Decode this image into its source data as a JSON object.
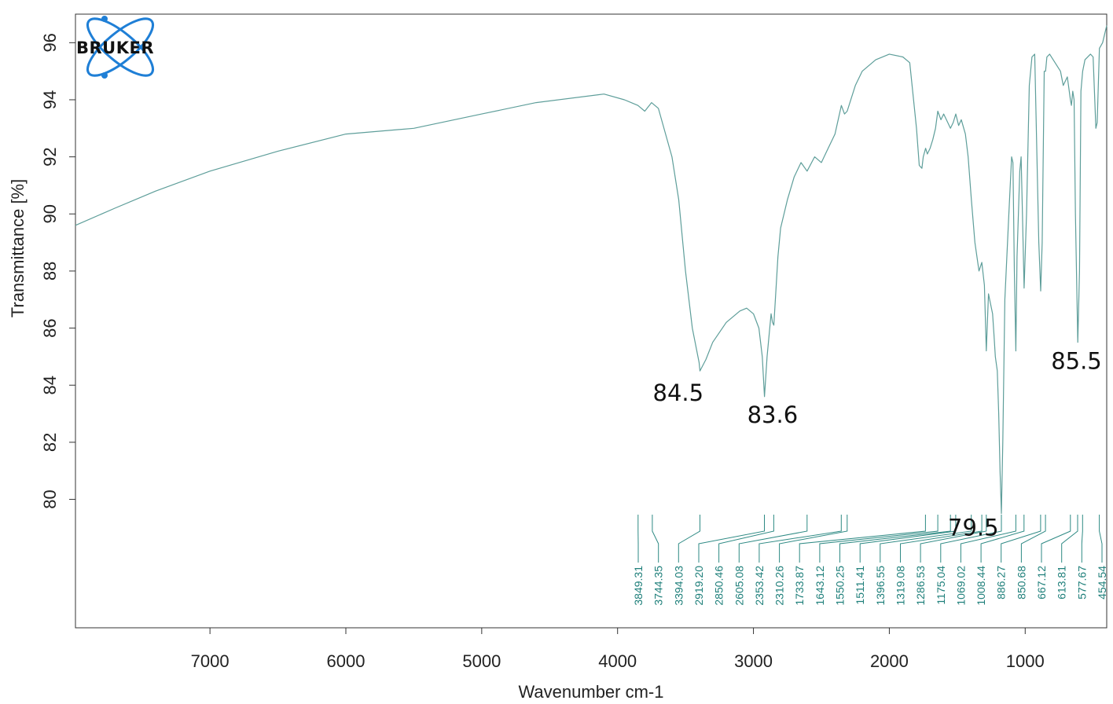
{
  "logo": {
    "text": "BRUKER",
    "accent_color": "#1f7fd6"
  },
  "colors": {
    "spectrum": "#5e9e9a",
    "peak_lines": "#2e8a84",
    "peak_text": "#1e7f7a",
    "axes": "#333333"
  },
  "chart_data": {
    "type": "line",
    "xlabel": "Wavenumber cm-1",
    "ylabel": "Transmittance [%]",
    "x_reversed": true,
    "xlim": [
      7990,
      400
    ],
    "ylim": [
      75.5,
      97
    ],
    "x_ticks": [
      7000,
      6000,
      5000,
      4000,
      3000,
      2000,
      1000
    ],
    "y_ticks": [
      80,
      82,
      84,
      86,
      88,
      90,
      92,
      94,
      96
    ],
    "grid": false,
    "series": [
      {
        "x": [
          7990,
          7700,
          7400,
          7000,
          6500,
          6000,
          5500,
          5000,
          4600,
          4100,
          3950,
          3850,
          3800,
          3750,
          3700,
          3600,
          3550,
          3500,
          3450,
          3400,
          3394,
          3350,
          3300,
          3200,
          3100,
          3050,
          3000,
          2960,
          2935,
          2919,
          2900,
          2870,
          2860,
          2850,
          2820,
          2800,
          2750,
          2700,
          2650,
          2605,
          2550,
          2500,
          2450,
          2400,
          2353,
          2330,
          2310,
          2250,
          2200,
          2100,
          2000,
          1900,
          1850,
          1800,
          1780,
          1760,
          1750,
          1733,
          1720,
          1700,
          1680,
          1660,
          1643,
          1620,
          1600,
          1570,
          1550,
          1530,
          1511,
          1490,
          1470,
          1440,
          1420,
          1396,
          1370,
          1340,
          1319,
          1300,
          1286,
          1270,
          1240,
          1230,
          1220,
          1205,
          1195,
          1185,
          1175,
          1165,
          1150,
          1120,
          1100,
          1090,
          1080,
          1069,
          1060,
          1040,
          1030,
          1020,
          1008,
          990,
          970,
          950,
          930,
          900,
          886,
          875,
          860,
          850,
          840,
          820,
          780,
          740,
          720,
          690,
          667,
          660,
          650,
          640,
          630,
          613,
          600,
          590,
          577,
          560,
          520,
          500,
          480,
          470,
          454,
          430,
          400
        ],
        "y": [
          89.6,
          90.2,
          90.8,
          91.5,
          92.2,
          92.8,
          93.0,
          93.5,
          93.9,
          94.2,
          94.0,
          93.8,
          93.6,
          93.9,
          93.7,
          92.0,
          90.5,
          88.0,
          86.0,
          84.8,
          84.5,
          84.9,
          85.5,
          86.2,
          86.6,
          86.7,
          86.5,
          86.0,
          85.0,
          83.6,
          85.0,
          86.5,
          86.2,
          86.1,
          88.5,
          89.5,
          90.5,
          91.3,
          91.8,
          91.5,
          92.0,
          91.8,
          92.3,
          92.8,
          93.8,
          93.5,
          93.6,
          94.5,
          95.0,
          95.4,
          95.6,
          95.5,
          95.3,
          93.0,
          91.7,
          91.6,
          92.0,
          92.3,
          92.1,
          92.3,
          92.6,
          93.0,
          93.6,
          93.3,
          93.5,
          93.2,
          93.0,
          93.2,
          93.5,
          93.1,
          93.3,
          92.8,
          92.0,
          90.5,
          89.0,
          88.0,
          88.3,
          87.5,
          85.2,
          87.2,
          86.5,
          85.8,
          85.0,
          84.5,
          83.0,
          81.0,
          79.5,
          82.0,
          87.0,
          90.0,
          92.0,
          91.8,
          88.0,
          85.2,
          88.5,
          91.5,
          92.0,
          90.0,
          87.4,
          90.0,
          94.5,
          95.5,
          95.6,
          89.0,
          87.3,
          89.0,
          95.0,
          95.0,
          95.5,
          95.6,
          95.3,
          95.0,
          94.5,
          94.8,
          94.0,
          93.8,
          94.3,
          94.0,
          90.0,
          85.5,
          88.0,
          94.3,
          95.0,
          95.4,
          95.6,
          95.5,
          93.0,
          93.2,
          95.8,
          96.0,
          96.6
        ]
      }
    ],
    "peak_labels": [
      {
        "x": 3849.31,
        "text": "3849.31"
      },
      {
        "x": 3744.35,
        "text": "3744.35"
      },
      {
        "x": 3394.03,
        "text": "3394.03"
      },
      {
        "x": 2919.2,
        "text": "2919.20"
      },
      {
        "x": 2850.46,
        "text": "2850.46"
      },
      {
        "x": 2605.08,
        "text": "2605.08"
      },
      {
        "x": 2353.42,
        "text": "2353.42"
      },
      {
        "x": 2310.26,
        "text": "2310.26"
      },
      {
        "x": 1733.87,
        "text": "1733.87"
      },
      {
        "x": 1643.12,
        "text": "1643.12"
      },
      {
        "x": 1550.25,
        "text": "1550.25"
      },
      {
        "x": 1511.41,
        "text": "1511.41"
      },
      {
        "x": 1396.55,
        "text": "1396.55"
      },
      {
        "x": 1319.08,
        "text": "1319.08"
      },
      {
        "x": 1286.53,
        "text": "1286.53"
      },
      {
        "x": 1175.04,
        "text": "1175.04"
      },
      {
        "x": 1069.02,
        "text": "1069.02"
      },
      {
        "x": 1008.44,
        "text": "1008.44"
      },
      {
        "x": 886.27,
        "text": "886.27"
      },
      {
        "x": 850.68,
        "text": "850.68"
      },
      {
        "x": 667.12,
        "text": "667.12"
      },
      {
        "x": 613.81,
        "text": "613.81"
      },
      {
        "x": 577.67,
        "text": "577.67"
      },
      {
        "x": 454.54,
        "text": "454.54"
      }
    ],
    "annotations": [
      {
        "text": "84.5",
        "x": 3394,
        "y": 84.5
      },
      {
        "text": "83.6",
        "x": 2919,
        "y": 83.6
      },
      {
        "text": "79.5",
        "x": 1175,
        "y": 79.5
      },
      {
        "text": "85.5",
        "x": 613,
        "y": 85.5
      }
    ]
  }
}
